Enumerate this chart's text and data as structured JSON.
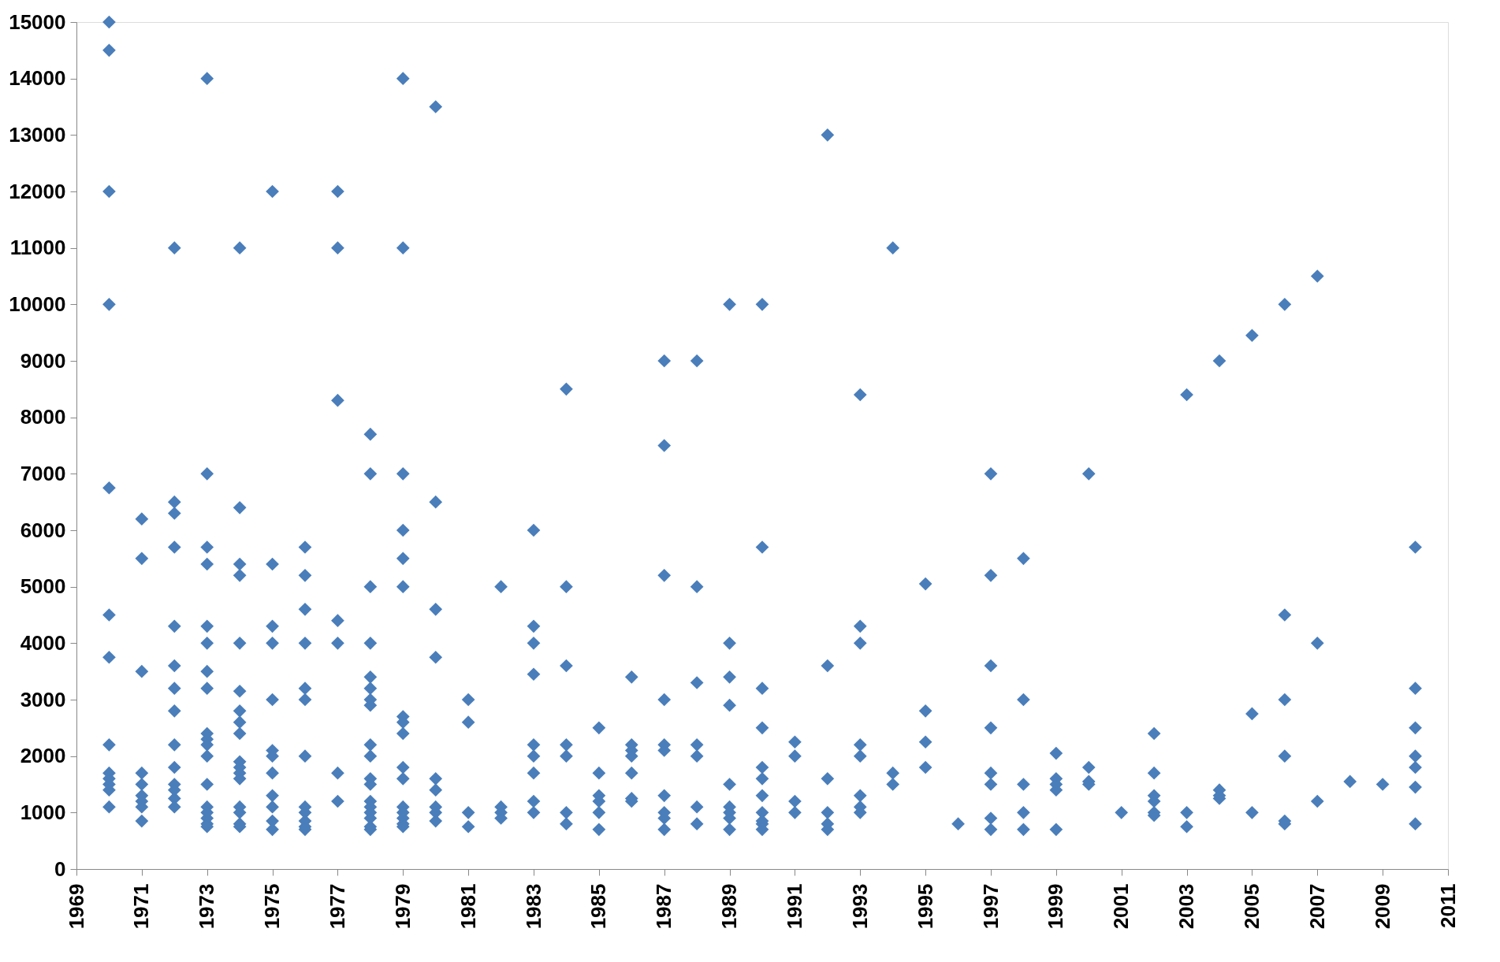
{
  "chart_data": {
    "type": "scatter",
    "marker": "diamond",
    "grid": false,
    "xlim": [
      1969,
      2011
    ],
    "xticks": [
      1969,
      1971,
      1973,
      1975,
      1977,
      1979,
      1981,
      1983,
      1985,
      1987,
      1989,
      1991,
      1993,
      1995,
      1997,
      1999,
      2001,
      2003,
      2005,
      2007,
      2009,
      2011
    ],
    "ylim": [
      0,
      15000
    ],
    "yticks": [
      0,
      1000,
      2000,
      3000,
      4000,
      5000,
      6000,
      7000,
      8000,
      9000,
      10000,
      11000,
      12000,
      13000,
      14000,
      15000
    ],
    "series": [
      {
        "color": "#4a7ebb",
        "x": [
          1970,
          1970,
          1970,
          1970,
          1970,
          1970,
          1970,
          1970,
          1970,
          1970,
          1970,
          1970,
          1970,
          1971,
          1971,
          1971,
          1971,
          1971,
          1971,
          1971,
          1971,
          1971,
          1972,
          1972,
          1972,
          1972,
          1972,
          1972,
          1972,
          1972,
          1972,
          1972,
          1972,
          1972,
          1972,
          1972,
          1973,
          1973,
          1973,
          1973,
          1973,
          1973,
          1973,
          1973,
          1973,
          1973,
          1973,
          1973,
          1973,
          1973,
          1973,
          1973,
          1973,
          1973,
          1974,
          1974,
          1974,
          1974,
          1974,
          1974,
          1974,
          1974,
          1974,
          1974,
          1974,
          1974,
          1974,
          1974,
          1974,
          1974,
          1974,
          1975,
          1975,
          1975,
          1975,
          1975,
          1975,
          1975,
          1975,
          1975,
          1975,
          1975,
          1975,
          1976,
          1976,
          1976,
          1976,
          1976,
          1976,
          1976,
          1976,
          1976,
          1976,
          1976,
          1976,
          1977,
          1977,
          1977,
          1977,
          1977,
          1977,
          1977,
          1978,
          1978,
          1978,
          1978,
          1978,
          1978,
          1978,
          1978,
          1978,
          1978,
          1978,
          1978,
          1978,
          1978,
          1978,
          1978,
          1978,
          1978,
          1979,
          1979,
          1979,
          1979,
          1979,
          1979,
          1979,
          1979,
          1979,
          1979,
          1979,
          1979,
          1979,
          1979,
          1979,
          1979,
          1980,
          1980,
          1980,
          1980,
          1980,
          1980,
          1980,
          1980,
          1980,
          1981,
          1981,
          1981,
          1981,
          1982,
          1982,
          1982,
          1982,
          1983,
          1983,
          1983,
          1983,
          1983,
          1983,
          1983,
          1983,
          1983,
          1984,
          1984,
          1984,
          1984,
          1984,
          1984,
          1984,
          1985,
          1985,
          1985,
          1985,
          1985,
          1985,
          1986,
          1986,
          1986,
          1986,
          1986,
          1986,
          1986,
          1987,
          1987,
          1987,
          1987,
          1987,
          1987,
          1987,
          1987,
          1987,
          1987,
          1988,
          1988,
          1988,
          1988,
          1988,
          1988,
          1988,
          1989,
          1989,
          1989,
          1989,
          1989,
          1989,
          1989,
          1989,
          1989,
          1990,
          1990,
          1990,
          1990,
          1990,
          1990,
          1990,
          1990,
          1990,
          1990,
          1990,
          1991,
          1991,
          1991,
          1991,
          1992,
          1992,
          1992,
          1992,
          1992,
          1992,
          1993,
          1993,
          1993,
          1993,
          1993,
          1993,
          1993,
          1993,
          1994,
          1994,
          1994,
          1995,
          1995,
          1995,
          1995,
          1996,
          1997,
          1997,
          1997,
          1997,
          1997,
          1997,
          1997,
          1997,
          1998,
          1998,
          1998,
          1998,
          1998,
          1999,
          1999,
          1999,
          1999,
          1999,
          2000,
          2000,
          2000,
          2000,
          2001,
          2002,
          2002,
          2002,
          2002,
          2002,
          2002,
          2003,
          2003,
          2003,
          2004,
          2004,
          2004,
          2004,
          2005,
          2005,
          2005,
          2006,
          2006,
          2006,
          2006,
          2006,
          2006,
          2007,
          2007,
          2007,
          2008,
          2009,
          2010,
          2010,
          2010,
          2010,
          2010,
          2010,
          2010
        ],
        "values": [
          15000,
          14500,
          12000,
          10000,
          6750,
          4500,
          3750,
          2200,
          1700,
          1600,
          1500,
          1400,
          1100,
          6200,
          5500,
          3500,
          1700,
          1500,
          1300,
          1200,
          1100,
          850,
          11000,
          6500,
          6300,
          5700,
          4300,
          3600,
          3200,
          2800,
          2200,
          1800,
          1500,
          1400,
          1250,
          1100,
          14000,
          7000,
          5700,
          5400,
          4300,
          4000,
          3500,
          3200,
          2400,
          2300,
          2200,
          2000,
          1500,
          1100,
          1000,
          900,
          800,
          750,
          11000,
          6400,
          5400,
          5200,
          4000,
          3150,
          2800,
          2600,
          2400,
          1900,
          1800,
          1700,
          1600,
          1100,
          1000,
          800,
          750,
          12000,
          5400,
          4300,
          4000,
          3000,
          2100,
          2000,
          1700,
          1300,
          1100,
          850,
          700,
          5700,
          5200,
          4600,
          4000,
          3200,
          3000,
          2000,
          1100,
          1000,
          850,
          750,
          700,
          12000,
          11000,
          8300,
          4400,
          4000,
          1700,
          1200,
          7700,
          7000,
          5000,
          4000,
          3400,
          3200,
          3000,
          2900,
          2200,
          2000,
          1600,
          1500,
          1200,
          1100,
          1000,
          900,
          750,
          700,
          14000,
          11000,
          7000,
          6000,
          5500,
          5000,
          2700,
          2600,
          2400,
          1800,
          1600,
          1100,
          1000,
          900,
          800,
          750,
          13500,
          6500,
          4600,
          3750,
          1600,
          1400,
          1100,
          1000,
          850,
          3000,
          2600,
          1000,
          750,
          5000,
          1100,
          1000,
          900,
          6000,
          4300,
          4000,
          3450,
          2200,
          2000,
          1700,
          1200,
          1000,
          8500,
          5000,
          3600,
          2200,
          2000,
          1000,
          800,
          2500,
          1700,
          1300,
          1200,
          1000,
          700,
          3400,
          2200,
          2100,
          2000,
          1700,
          1250,
          1200,
          9000,
          7500,
          5200,
          3000,
          2200,
          2100,
          1300,
          1000,
          900,
          700,
          9000,
          5000,
          3300,
          2200,
          2000,
          1100,
          800,
          10000,
          4000,
          3400,
          2900,
          1500,
          1100,
          1000,
          900,
          700,
          10000,
          5700,
          3200,
          2500,
          1800,
          1600,
          1300,
          1000,
          850,
          800,
          700,
          2250,
          2000,
          1200,
          1000,
          13000,
          3600,
          1600,
          1000,
          800,
          700,
          8400,
          4300,
          4000,
          2200,
          2000,
          1300,
          1100,
          1000,
          11000,
          1700,
          1500,
          5050,
          2800,
          2250,
          1800,
          800,
          7000,
          5200,
          3600,
          2500,
          1700,
          1500,
          900,
          700,
          5500,
          3000,
          1500,
          1000,
          700,
          2050,
          1600,
          1500,
          1400,
          700,
          7000,
          1800,
          1550,
          1500,
          1000,
          2400,
          1700,
          1300,
          1200,
          1000,
          950,
          8400,
          1000,
          750,
          9000,
          1400,
          1300,
          1250,
          9450,
          2750,
          1000,
          10000,
          4500,
          3000,
          2000,
          850,
          800,
          10500,
          4000,
          1200,
          1550,
          1500,
          5700,
          3200,
          2500,
          2000,
          1800,
          1450,
          800
        ]
      }
    ]
  }
}
